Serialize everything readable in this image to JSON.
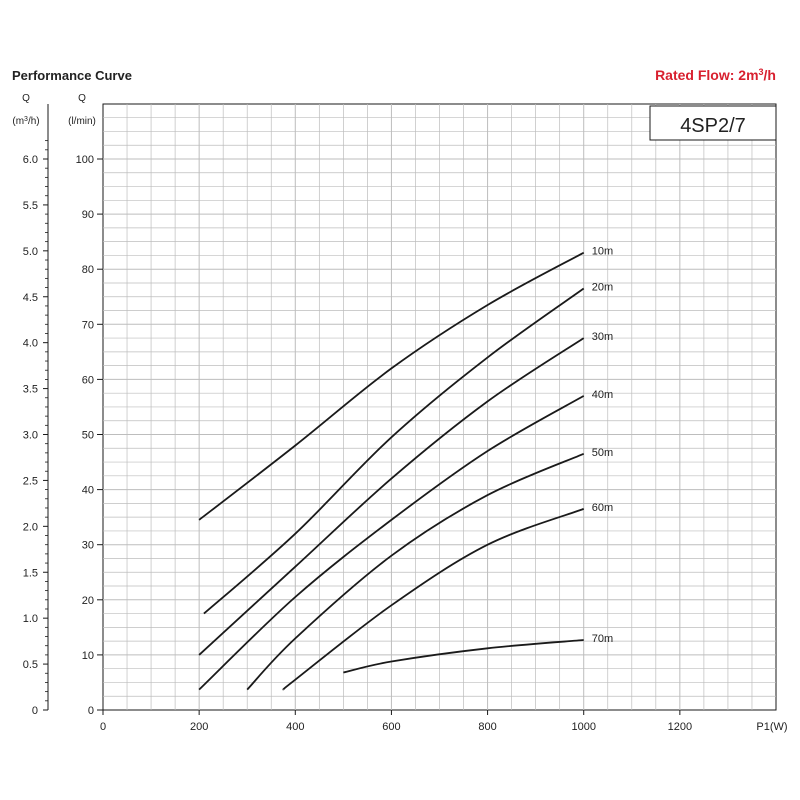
{
  "header": {
    "title": "Performance Curve",
    "rated_flow_label": "Rated Flow: 2m",
    "rated_flow_sup": "3",
    "rated_flow_unit": "/h",
    "model": "4SP2/7"
  },
  "colors": {
    "accent": "#d8202f",
    "line": "#1a1a1a",
    "grid": "#bdbdbd"
  },
  "axes": {
    "left_label_q": "Q",
    "left_unit_prefix": "(m",
    "left_unit_sup": "3",
    "left_unit_suffix": "/h)",
    "left_ticks": [
      "0",
      "0.5",
      "1.0",
      "1.5",
      "2.0",
      "2.5",
      "3.0",
      "3.5",
      "4.0",
      "4.5",
      "5.0",
      "5.5",
      "6.0"
    ],
    "mid_label_q": "Q",
    "mid_unit": "(l/min)",
    "mid_ticks": [
      "0",
      "10",
      "20",
      "30",
      "40",
      "50",
      "60",
      "70",
      "80",
      "90",
      "100"
    ],
    "x_ticks": [
      "0",
      "200",
      "400",
      "600",
      "800",
      "1000",
      "1200"
    ],
    "x_label": "P1(W)"
  },
  "chart_data": {
    "type": "line",
    "title": "Performance Curve",
    "xlabel": "P1(W)",
    "ylabel": "Q (l/min)",
    "xlim": [
      0,
      1400
    ],
    "ylim": [
      0,
      100
    ],
    "y2label": "Q (m3/h)",
    "y2lim": [
      0,
      6
    ],
    "grid": true,
    "series": [
      {
        "name": "10m",
        "x": [
          200,
          400,
          600,
          800,
          1000
        ],
        "y": [
          34.5,
          48,
          62,
          73.5,
          83
        ]
      },
      {
        "name": "20m",
        "x": [
          210,
          400,
          600,
          800,
          1000
        ],
        "y": [
          17.5,
          32,
          49.5,
          64,
          76.5
        ]
      },
      {
        "name": "30m",
        "x": [
          200,
          400,
          600,
          800,
          1000
        ],
        "y": [
          10,
          26,
          42,
          56,
          67.5
        ]
      },
      {
        "name": "40m",
        "x": [
          200,
          400,
          600,
          800,
          1000
        ],
        "y": [
          3.7,
          20.5,
          34.5,
          47,
          57
        ]
      },
      {
        "name": "50m",
        "x": [
          300,
          400,
          600,
          800,
          1000
        ],
        "y": [
          3.7,
          13,
          28,
          39,
          46.5
        ]
      },
      {
        "name": "60m",
        "x": [
          375,
          400,
          600,
          800,
          1000
        ],
        "y": [
          3.7,
          5.5,
          19,
          30,
          36.5
        ]
      },
      {
        "name": "70m",
        "x": [
          500,
          600,
          800,
          1000
        ],
        "y": [
          6.8,
          8.8,
          11.2,
          12.7
        ]
      }
    ]
  }
}
